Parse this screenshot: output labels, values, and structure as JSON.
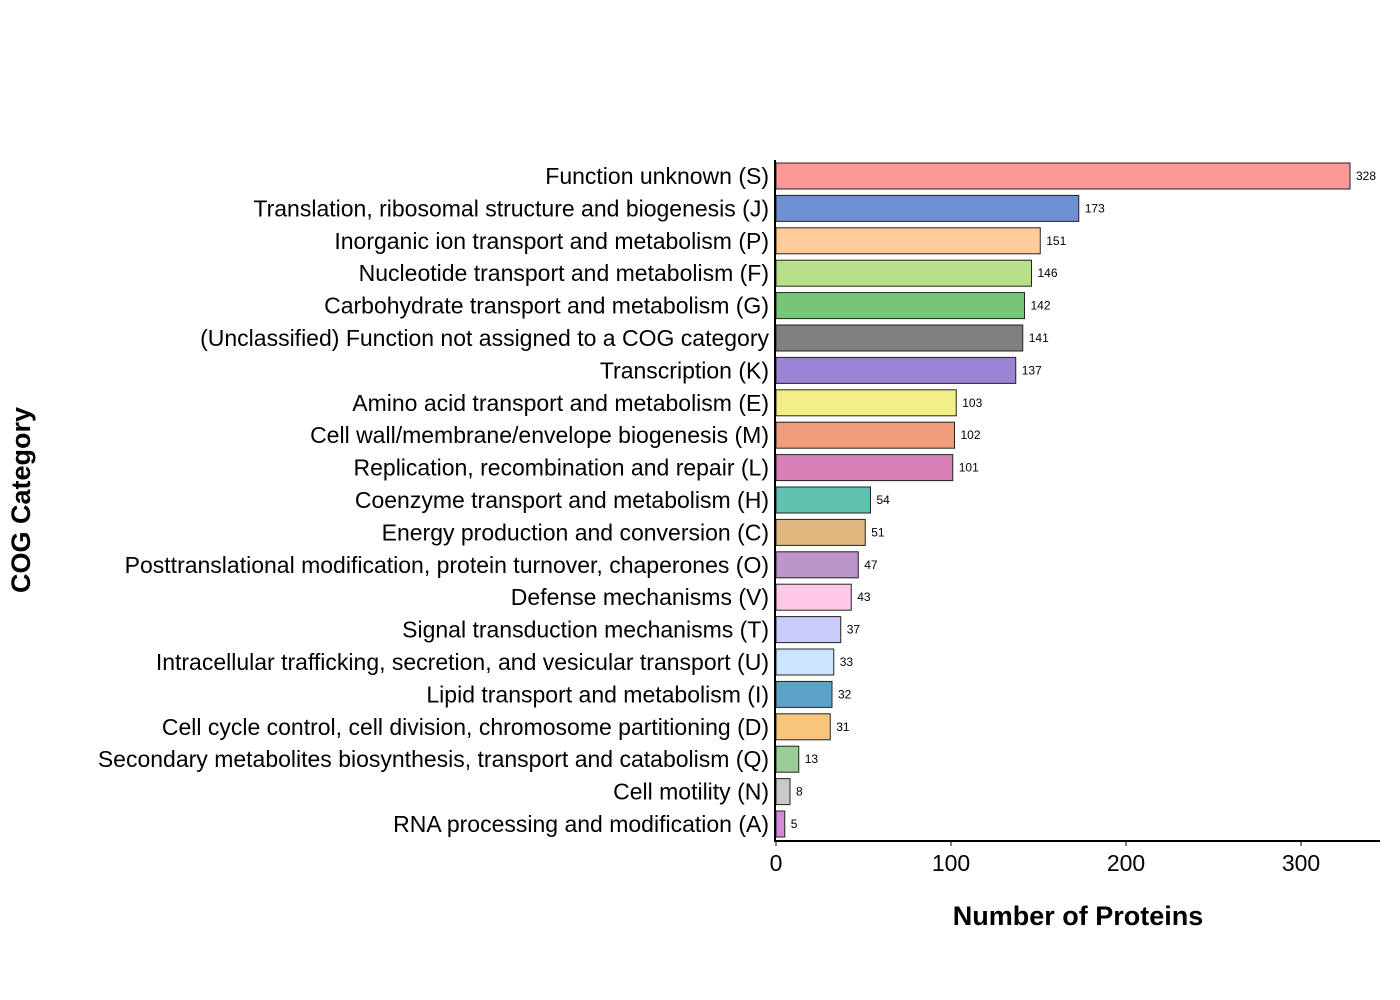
{
  "chart_data": {
    "type": "bar",
    "orientation": "horizontal",
    "title": "",
    "xlabel": "Number of Proteins",
    "ylabel": "COG Category",
    "xlim": [
      0,
      346
    ],
    "xticks": [
      0,
      100,
      200,
      300
    ],
    "grid": false,
    "legend": "none",
    "categories": [
      "Function unknown (S)",
      "Translation, ribosomal structure and biogenesis (J)",
      "Inorganic ion transport and metabolism (P)",
      "Nucleotide transport and metabolism (F)",
      "Carbohydrate transport and metabolism (G)",
      "(Unclassified) Function not assigned to a COG category",
      "Transcription (K)",
      "Amino acid transport and metabolism (E)",
      "Cell wall/membrane/envelope biogenesis (M)",
      "Replication, recombination and repair (L)",
      "Coenzyme transport and metabolism (H)",
      "Energy production and conversion (C)",
      "Posttranslational modification, protein turnover, chaperones (O)",
      "Defense mechanisms (V)",
      "Signal transduction mechanisms (T)",
      "Intracellular trafficking, secretion, and vesicular transport (U)",
      "Lipid transport and metabolism (I)",
      "Cell cycle control, cell division, chromosome partitioning (D)",
      "Secondary metabolites biosynthesis, transport and catabolism (Q)",
      "Cell motility (N)",
      "RNA processing and modification (A)"
    ],
    "values": [
      328,
      173,
      151,
      146,
      142,
      141,
      137,
      103,
      102,
      101,
      54,
      51,
      47,
      43,
      37,
      33,
      32,
      31,
      13,
      8,
      5
    ],
    "colors": [
      "#FF9999",
      "#6F8FD3",
      "#FFCC99",
      "#B8E08A",
      "#77C577",
      "#808080",
      "#9B84D6",
      "#F2EF88",
      "#F09D7C",
      "#D87FB8",
      "#5FC2B0",
      "#E0B77E",
      "#BC95CA",
      "#FFC8E6",
      "#CACAFB",
      "#CCE5FF",
      "#5AA3C6",
      "#F8C57C",
      "#9ACD97",
      "#C8C8C8",
      "#D58AD9"
    ]
  }
}
